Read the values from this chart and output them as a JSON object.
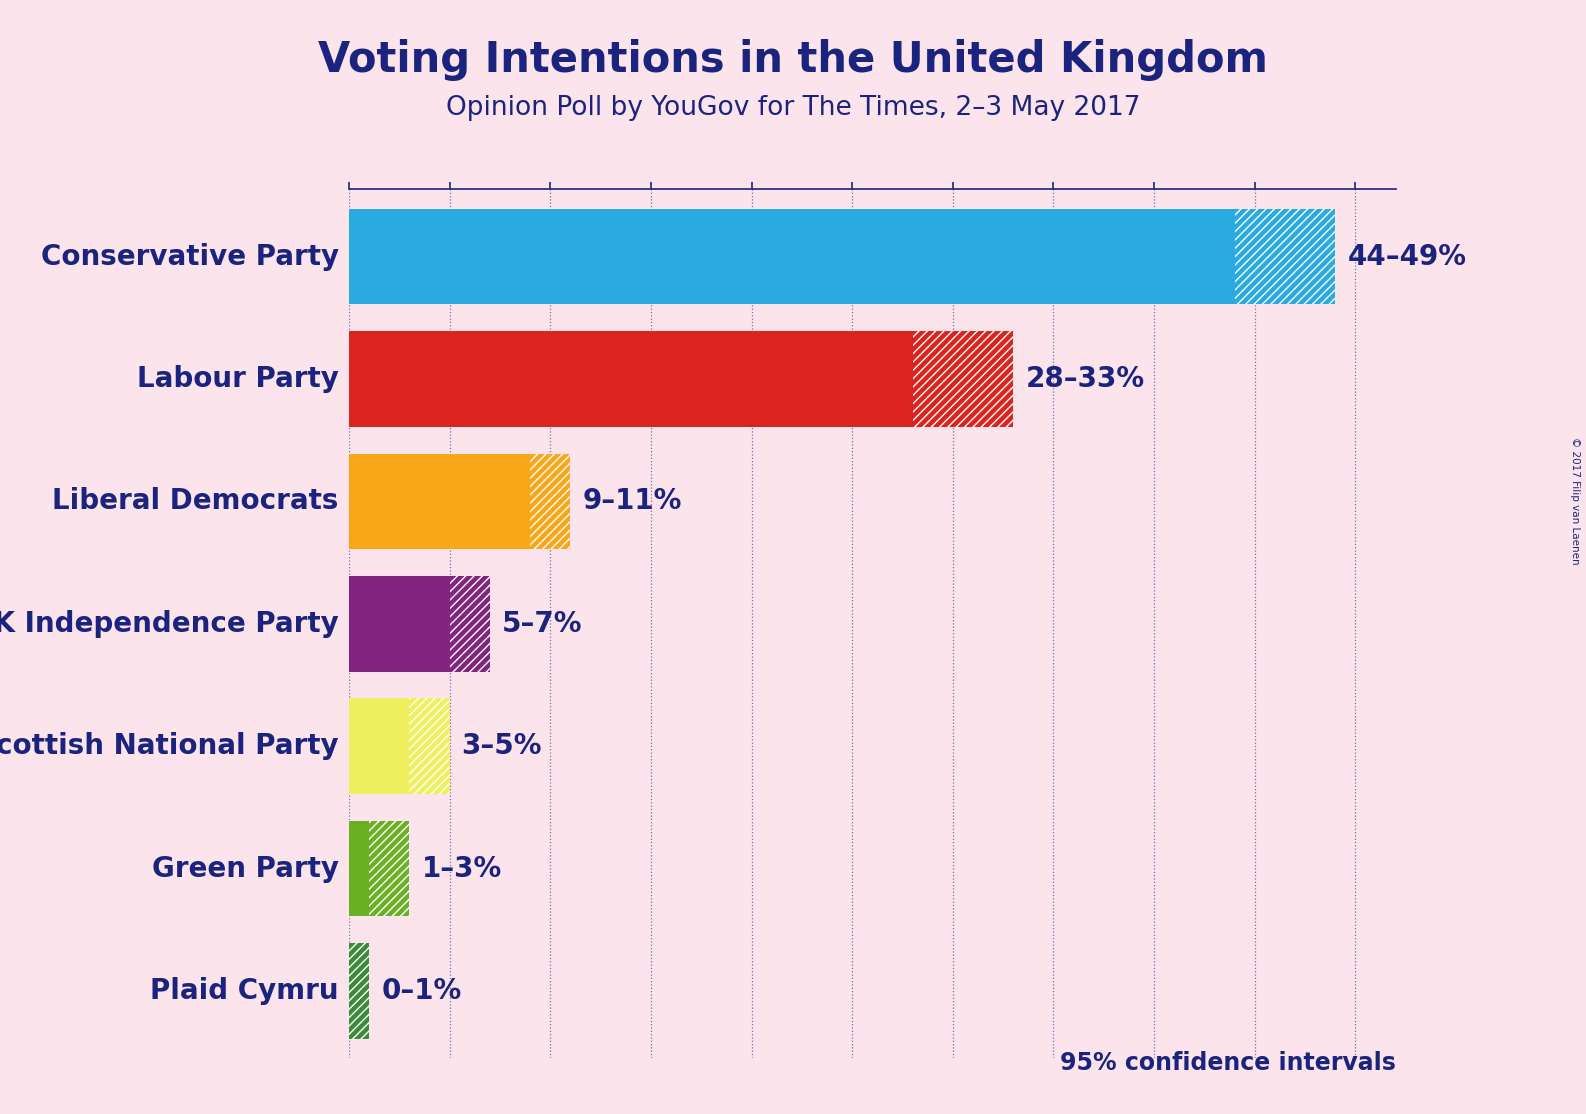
{
  "title": "Voting Intentions in the United Kingdom",
  "subtitle": "Opinion Poll by YouGov for The Times, 2–3 May 2017",
  "copyright": "© 2017 Filip van Laenen",
  "background_color": "#fce4ec",
  "text_color": "#1a237e",
  "confidence_label": "95% confidence intervals",
  "parties": [
    {
      "name": "Conservative Party",
      "low": 44,
      "high": 49,
      "color": "#29ABE2",
      "label": "44–49%"
    },
    {
      "name": "Labour Party",
      "low": 28,
      "high": 33,
      "color": "#DC241F",
      "label": "28–33%"
    },
    {
      "name": "Liberal Democrats",
      "low": 9,
      "high": 11,
      "color": "#FAA619",
      "label": "9–11%"
    },
    {
      "name": "UK Independence Party",
      "low": 5,
      "high": 7,
      "color": "#832481",
      "label": "5–7%"
    },
    {
      "name": "Scottish National Party",
      "low": 3,
      "high": 5,
      "color": "#EEF060",
      "label": "3–5%"
    },
    {
      "name": "Green Party",
      "low": 1,
      "high": 3,
      "color": "#6AB023",
      "label": "1–3%"
    },
    {
      "name": "Plaid Cymru",
      "low": 0,
      "high": 1,
      "color": "#3B8B3B",
      "label": "0–1%"
    }
  ],
  "xlim": [
    0,
    52
  ],
  "tick_interval": 5,
  "bar_height": 0.78
}
